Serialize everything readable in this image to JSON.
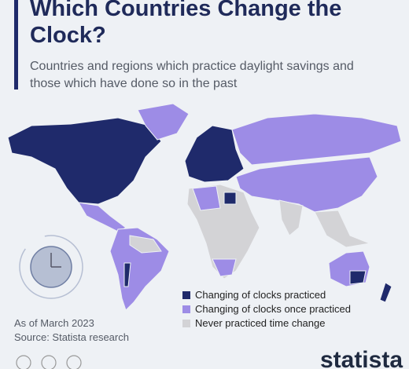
{
  "header": {
    "title": "Which Countries Change the Clock?",
    "subtitle": "Countries and regions which practice daylight savings and those which have done so in the past"
  },
  "legend": {
    "items": [
      {
        "label": "Changing of clocks practiced",
        "color": "#1f2a6b"
      },
      {
        "label": "Changing of clocks once practiced",
        "color": "#9d8ce6"
      },
      {
        "label": "Never practiced time change",
        "color": "#d3d3d6"
      }
    ]
  },
  "footer": {
    "date": "As of March 2023",
    "source": "Source: Statista research"
  },
  "brand": "statista"
}
